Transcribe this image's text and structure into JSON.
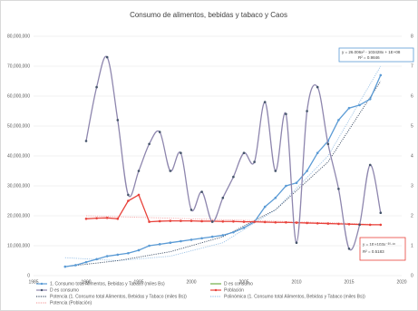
{
  "chart_data": {
    "type": "line",
    "title": "Consumo  de alimentos, bebidas y tabaco y Caos",
    "xlim": [
      1985,
      2020
    ],
    "xticks": [
      1985,
      1990,
      1995,
      2000,
      2005,
      2010,
      2015,
      2020
    ],
    "ylim": [
      0,
      80000000
    ],
    "yticks": [
      0,
      {
        "value": 10000000,
        "label": "10,000,000"
      },
      {
        "value": 20000000,
        "label": "20,000,000"
      },
      {
        "value": 30000000,
        "label": "30,000,000"
      },
      {
        "value": 40000000,
        "label": "40,000,000"
      },
      {
        "value": 50000000,
        "label": "50,000,000"
      },
      {
        "value": 60000000,
        "label": "60,000,000"
      },
      {
        "value": 70000000,
        "label": "70,000,000"
      },
      {
        "value": 80000000,
        "label": "80,000,000"
      }
    ],
    "y2lim": [
      0,
      8
    ],
    "y2ticks": [
      0,
      1,
      2,
      3,
      4,
      5,
      6,
      7,
      8
    ],
    "grid": true,
    "series": [
      {
        "name": "1. Consumo total Alimentos, Bebidas y Tabaco (miles Bs)",
        "color": "#5b9bd5",
        "marker": true,
        "x": [
          1988,
          1989,
          1990,
          1991,
          1992,
          1993,
          1994,
          1995,
          1996,
          1997,
          1998,
          1999,
          2000,
          2001,
          2002,
          2003,
          2004,
          2005,
          2006,
          2007,
          2008,
          2009,
          2010,
          2011,
          2012,
          2013,
          2014,
          2015,
          2016,
          2017,
          2018
        ],
        "values": [
          3000000,
          3500000,
          4500000,
          5500000,
          6500000,
          7000000,
          7500000,
          8500000,
          10000000,
          10500000,
          11000000,
          11500000,
          12000000,
          12500000,
          13000000,
          13500000,
          14500000,
          16000000,
          18000000,
          23000000,
          26000000,
          30000000,
          31000000,
          35000000,
          41000000,
          45000000,
          52000000,
          56000000,
          57000000,
          59000000,
          67000000
        ]
      },
      {
        "name": "D es consumo",
        "color": "#70ad47",
        "x": [],
        "values": []
      },
      {
        "name": "D es consumo",
        "color": "#8e86ae",
        "marker": true,
        "axis": "y2",
        "smooth": true,
        "x": [
          1990,
          1991,
          1992,
          1993,
          1994,
          1995,
          1996,
          1997,
          1998,
          1999,
          2000,
          2001,
          2002,
          2003,
          2004,
          2005,
          2006,
          2007,
          2008,
          2009,
          2010,
          2011,
          2012,
          2013,
          2014,
          2015,
          2016,
          2017,
          2018
        ],
        "values": [
          4.5,
          6.3,
          7.3,
          5.2,
          2.7,
          3.5,
          4.4,
          4.8,
          3.5,
          4.1,
          2.2,
          2.8,
          1.8,
          2.6,
          3.3,
          4.1,
          3.8,
          5.8,
          3.5,
          5.4,
          1.1,
          5.5,
          6.3,
          4.4,
          2.9,
          0.9,
          1.7,
          3.7,
          2.1
        ]
      },
      {
        "name": "Población",
        "color": "#e8423b",
        "marker": true,
        "x": [
          1990,
          1991,
          1992,
          1993,
          1994,
          1995,
          1996,
          1997,
          1998,
          1999,
          2000,
          2001,
          2002,
          2003,
          2004,
          2005,
          2006,
          2007,
          2008,
          2009,
          2010,
          2011,
          2012,
          2013,
          2014,
          2015,
          2016,
          2017,
          2018
        ],
        "values": [
          19000000,
          19200000,
          19300000,
          19000000,
          25000000,
          27000000,
          18000000,
          18200000,
          18300000,
          18300000,
          18300000,
          18200000,
          18200000,
          18100000,
          18100000,
          18000000,
          18000000,
          17900000,
          17800000,
          17800000,
          17700000,
          17600000,
          17500000,
          17400000,
          17300000,
          17200000,
          17100000,
          17000000,
          17000000
        ]
      },
      {
        "name": "Potencia (1. Consumo total Alimentos, Bebidas y Tabaco (miles Bs))",
        "color": "#44546a",
        "dash": true,
        "x": [
          1988,
          1993,
          1998,
          2003,
          2008,
          2013,
          2018
        ],
        "values": [
          3000000,
          5000000,
          8000000,
          13000000,
          22000000,
          38000000,
          65000000
        ]
      },
      {
        "name": "Polinómica (1. Consumo total Alimentos, Bebidas y Tabaco (miles Bs))",
        "color": "#9dc3e6",
        "dash": true,
        "x": [
          1988,
          1993,
          1998,
          2003,
          2008,
          2013,
          2018
        ],
        "values": [
          6000000,
          5000000,
          6500000,
          11000000,
          22000000,
          40000000,
          70000000
        ]
      },
      {
        "name": "Potencia (Población)",
        "color": "#f4a6a6",
        "dash": true,
        "x": [
          1990,
          1995,
          2000,
          2005,
          2010,
          2015,
          2018
        ],
        "values": [
          20000000,
          19500000,
          19000000,
          18500000,
          18000000,
          17500000,
          17000000
        ]
      }
    ],
    "annotations": [
      "y = 26.006x² - 103428x + 1E+08",
      "R² = 0.9846",
      "y = 1E+103x⁻³⁰·¹⁸",
      "R² = 0.5183"
    ]
  }
}
